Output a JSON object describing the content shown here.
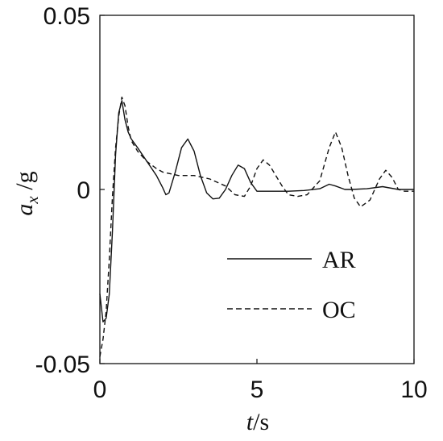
{
  "chart_data": {
    "type": "line",
    "title": "",
    "xlabel": {
      "symbol": "t",
      "unit": "/s"
    },
    "ylabel": {
      "symbol": "a",
      "subscript": "x",
      "suffix": " /g"
    },
    "xlim": [
      0,
      10
    ],
    "ylim": [
      -0.05,
      0.05
    ],
    "xticks": [
      "0",
      "5",
      "10"
    ],
    "xtick_values": [
      0,
      5,
      10
    ],
    "yticks": [
      "0.05",
      "0",
      "-0.05"
    ],
    "ytick_values": [
      0.05,
      0,
      -0.05
    ],
    "grid": false,
    "legend_position": "bottom-right",
    "series": [
      {
        "name": "AR",
        "style": "solid",
        "color": "#111111",
        "x": [
          0,
          0.1,
          0.2,
          0.3,
          0.4,
          0.5,
          0.6,
          0.7,
          0.8,
          0.9,
          1.0,
          1.2,
          1.5,
          1.8,
          2.0,
          2.1,
          2.2,
          2.4,
          2.6,
          2.8,
          3.0,
          3.2,
          3.4,
          3.6,
          3.8,
          4.0,
          4.2,
          4.4,
          4.6,
          4.8,
          5.0,
          5.2,
          5.4,
          6.0,
          6.5,
          7.0,
          7.3,
          7.5,
          7.8,
          8.0,
          8.5,
          9.0,
          9.5,
          10.0
        ],
        "y": [
          -0.03,
          -0.038,
          -0.037,
          -0.03,
          -0.012,
          0.01,
          0.022,
          0.0255,
          0.02,
          0.0165,
          0.0145,
          0.012,
          0.008,
          0.004,
          0.0005,
          -0.0015,
          -0.001,
          0.005,
          0.012,
          0.0145,
          0.011,
          0.004,
          -0.001,
          -0.0027,
          -0.0025,
          0,
          0.004,
          0.007,
          0.006,
          0.002,
          -0.0005,
          -0.0005,
          -0.0005,
          -0.0005,
          -0.0003,
          0.0002,
          0.0015,
          0.001,
          0,
          0,
          0.0002,
          0.0008,
          0,
          0
        ]
      },
      {
        "name": "OC",
        "style": "dashed",
        "color": "#111111",
        "x": [
          0,
          0.1,
          0.2,
          0.3,
          0.4,
          0.5,
          0.6,
          0.7,
          0.8,
          0.9,
          1.0,
          1.2,
          1.5,
          1.8,
          2.0,
          2.5,
          3.0,
          3.5,
          4.0,
          4.3,
          4.6,
          4.8,
          5.0,
          5.2,
          5.4,
          5.6,
          5.8,
          6.0,
          6.3,
          6.6,
          7.0,
          7.3,
          7.5,
          7.7,
          7.9,
          8.1,
          8.3,
          8.6,
          8.9,
          9.1,
          9.3,
          9.5,
          9.7,
          10.0
        ],
        "y": [
          -0.048,
          -0.043,
          -0.035,
          -0.02,
          -0.002,
          0.012,
          0.021,
          0.0265,
          0.024,
          0.018,
          0.014,
          0.011,
          0.008,
          0.006,
          0.005,
          0.004,
          0.004,
          0.003,
          0.001,
          -0.0015,
          -0.002,
          0.001,
          0.006,
          0.0085,
          0.007,
          0.004,
          0.001,
          -0.0015,
          -0.002,
          -0.0015,
          0.0025,
          0.012,
          0.0165,
          0.012,
          0.004,
          -0.0025,
          -0.005,
          -0.003,
          0.003,
          0.0055,
          0.0035,
          0,
          -0.0005,
          -0.0005
        ]
      }
    ]
  }
}
